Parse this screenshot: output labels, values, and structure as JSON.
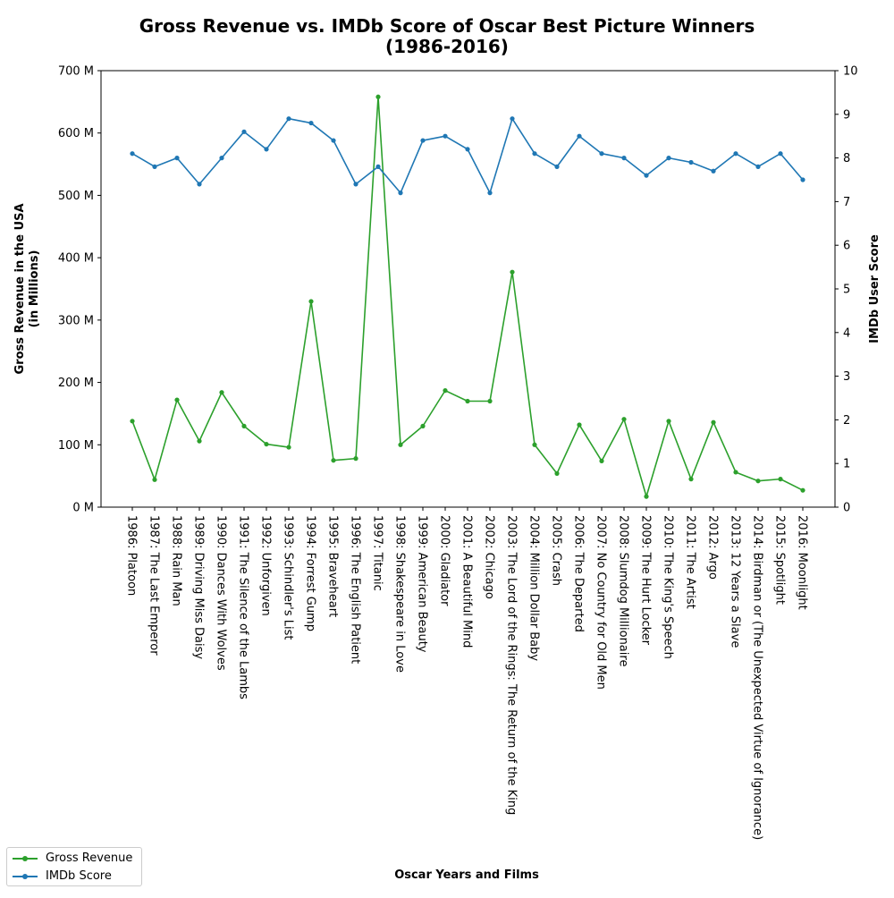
{
  "chart_data": {
    "type": "line",
    "title": "Gross Revenue vs. IMDb Score of Oscar Best Picture Winners\n(1986-2016)",
    "xlabel": "Oscar Years and Films",
    "ylabel_left": "Gross Revenue in the USA\n(in Millions)",
    "ylabel_right": "IMDb User Score",
    "ylim_left": [
      0,
      700
    ],
    "ylim_right": [
      0,
      10
    ],
    "left_ticks": [
      "0 M",
      "100 M",
      "200 M",
      "300 M",
      "400 M",
      "500 M",
      "600 M",
      "700 M"
    ],
    "right_ticks": [
      "0",
      "1",
      "2",
      "3",
      "4",
      "5",
      "6",
      "7",
      "8",
      "9",
      "10"
    ],
    "grid": false,
    "legend_position": "bottom-left",
    "categories": [
      "1986: Platoon",
      "1987: The Last Emperor",
      "1988: Rain Man",
      "1989: Driving Miss Daisy",
      "1990: Dances With Wolves",
      "1991: The Silence of the Lambs",
      "1992: Unforgiven",
      "1993: Schindler's List",
      "1994: Forrest Gump",
      "1995: Braveheart",
      "1996: The English Patient",
      "1997: Titanic",
      "1998: Shakespeare in Love",
      "1999: American Beauty",
      "2000: Gladiator",
      "2001: A Beautiful Mind",
      "2002: Chicago",
      "2003: The Lord of the Rings: The Return of the King",
      "2004: Million Dollar Baby",
      "2005: Crash",
      "2006: The Departed",
      "2007: No Country for Old Men",
      "2008: Slumdog Millionaire",
      "2009: The Hurt Locker",
      "2010: The King's Speech",
      "2011: The Artist",
      "2012: Argo",
      "2013: 12 Years a Slave",
      "2014: Birdman or (The Unexpected Virtue of Ignorance)",
      "2015: Spotlight",
      "2016: Moonlight"
    ],
    "series": [
      {
        "name": "Gross Revenue",
        "axis": "left",
        "color": "#2ca02c",
        "values": [
          138,
          44,
          172,
          106,
          184,
          130,
          101,
          96,
          330,
          75,
          78,
          658,
          100,
          130,
          187,
          170,
          170,
          377,
          100,
          54,
          132,
          74,
          141,
          17,
          138,
          45,
          136,
          56,
          42,
          45,
          27
        ]
      },
      {
        "name": "IMDb Score",
        "axis": "right",
        "color": "#1f77b4",
        "values": [
          8.1,
          7.8,
          8.0,
          7.4,
          8.0,
          8.6,
          8.2,
          8.9,
          8.8,
          8.4,
          7.4,
          7.8,
          7.2,
          8.4,
          8.5,
          8.2,
          7.2,
          8.9,
          8.1,
          7.8,
          8.5,
          8.1,
          8.0,
          7.6,
          8.0,
          7.9,
          7.7,
          8.1,
          7.8,
          8.1,
          7.5
        ]
      }
    ]
  }
}
